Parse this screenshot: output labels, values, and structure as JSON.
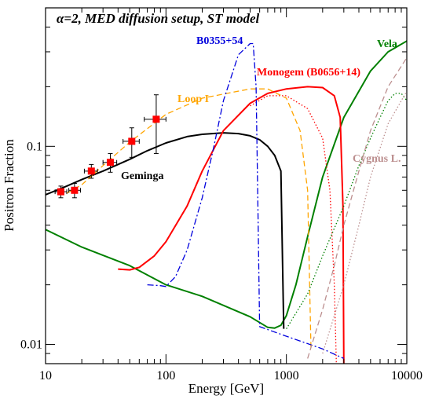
{
  "chart_data": {
    "type": "line",
    "title": "α=2, MED diffusion setup, ST model",
    "xlabel": "Energy [GeV]",
    "ylabel": "Positron Fraction",
    "x_scale": "log",
    "y_scale": "log",
    "xlim": [
      10,
      10000
    ],
    "ylim": [
      0.008,
      0.5
    ],
    "x_ticks": [
      10,
      100,
      1000,
      10000
    ],
    "x_tick_labels": [
      "10",
      "100",
      "1000",
      "10000"
    ],
    "y_ticks": [
      0.01,
      0.1
    ],
    "y_tick_labels": [
      "0.01",
      "0.1"
    ],
    "grid": false,
    "legend": "none",
    "annotations": [
      {
        "text": "B0355+54",
        "color": "#0000dd"
      },
      {
        "text": "Vela",
        "color": "#008000"
      },
      {
        "text": "Monogem (B0656+14)",
        "color": "#ff0000"
      },
      {
        "text": "Loop I",
        "color": "#ffa500"
      },
      {
        "text": "Geminga",
        "color": "#000000"
      },
      {
        "text": "Cygnus L.",
        "color": "#bc8f8f"
      }
    ],
    "series": [
      {
        "color": "#008000",
        "style": "solid",
        "x": [
          10,
          20,
          50,
          100,
          200,
          500,
          700,
          800,
          900,
          1000,
          1200,
          1500,
          2000,
          3000,
          5000,
          7000,
          10000
        ],
        "y": [
          0.038,
          0.031,
          0.025,
          0.02,
          0.0175,
          0.0138,
          0.0122,
          0.0121,
          0.0125,
          0.014,
          0.02,
          0.035,
          0.07,
          0.14,
          0.24,
          0.3,
          0.34
        ]
      },
      {
        "color": "#000000",
        "style": "solid",
        "x": [
          10,
          15,
          20,
          30,
          50,
          70,
          100,
          150,
          200,
          300,
          400,
          500,
          600,
          700,
          800,
          900,
          950
        ],
        "y": [
          0.057,
          0.063,
          0.068,
          0.075,
          0.086,
          0.095,
          0.104,
          0.112,
          0.115,
          0.117,
          0.116,
          0.113,
          0.108,
          0.1,
          0.09,
          0.075,
          0.012
        ]
      },
      {
        "color": "#ff0000",
        "style": "solid",
        "x": [
          40,
          50,
          60,
          80,
          100,
          150,
          200,
          300,
          500,
          700,
          1000,
          1500,
          2000,
          2500,
          2800,
          2950,
          3000
        ],
        "y": [
          0.024,
          0.0238,
          0.0245,
          0.028,
          0.033,
          0.05,
          0.075,
          0.12,
          0.165,
          0.185,
          0.195,
          0.2,
          0.198,
          0.18,
          0.14,
          0.05,
          0.008
        ]
      },
      {
        "color": "#ff0000",
        "style": "dotted",
        "x": [
          500,
          700,
          1000,
          1500,
          2000,
          2300,
          2500,
          2600
        ],
        "y": [
          0.16,
          0.18,
          0.18,
          0.155,
          0.11,
          0.06,
          0.02,
          0.008
        ]
      },
      {
        "color": "#ffa500",
        "style": "dashed",
        "x": [
          15,
          20,
          30,
          50,
          100,
          200,
          500,
          700,
          1000,
          1300,
          1500,
          1600
        ],
        "y": [
          0.058,
          0.064,
          0.08,
          0.105,
          0.145,
          0.175,
          0.195,
          0.195,
          0.175,
          0.12,
          0.06,
          0.0095
        ]
      },
      {
        "color": "#0000dd",
        "style": "dashdot",
        "x": [
          70,
          90,
          100,
          120,
          150,
          200,
          250,
          300,
          400,
          500,
          530,
          560,
          580,
          600,
          1000,
          2000,
          3000
        ],
        "y": [
          0.02,
          0.0198,
          0.0196,
          0.022,
          0.03,
          0.055,
          0.1,
          0.17,
          0.29,
          0.33,
          0.33,
          0.2,
          0.05,
          0.0123,
          0.011,
          0.0095,
          0.0085
        ]
      },
      {
        "color": "#008000",
        "style": "dotted",
        "x": [
          1000,
          1500,
          2000,
          3000,
          4000,
          5000,
          6000,
          7000,
          8000,
          9000,
          10000
        ],
        "y": [
          0.012,
          0.018,
          0.028,
          0.05,
          0.08,
          0.11,
          0.14,
          0.17,
          0.185,
          0.185,
          0.17
        ]
      },
      {
        "color": "#bc8f8f",
        "style": "dashed",
        "x": [
          1500,
          2000,
          2500,
          3000,
          4000,
          5000,
          7000,
          10000
        ],
        "y": [
          0.0085,
          0.015,
          0.025,
          0.04,
          0.075,
          0.12,
          0.2,
          0.28
        ]
      },
      {
        "color": "#bc8f8f",
        "style": "dotted",
        "x": [
          2000,
          3000,
          4000,
          5000,
          7000,
          10000
        ],
        "y": [
          0.009,
          0.02,
          0.04,
          0.07,
          0.13,
          0.19
        ]
      }
    ],
    "measurements": {
      "color": "#ff0000",
      "x": [
        13.4,
        17.4,
        24,
        34.5,
        52,
        83
      ],
      "y": [
        0.059,
        0.06,
        0.075,
        0.083,
        0.106,
        0.137
      ],
      "y_err": [
        0.004,
        0.005,
        0.006,
        0.009,
        0.018,
        0.045
      ],
      "x_lo": [
        12,
        15.6,
        21,
        30,
        44,
        66
      ],
      "x_hi": [
        15,
        19.5,
        27,
        39,
        60,
        100
      ]
    }
  }
}
